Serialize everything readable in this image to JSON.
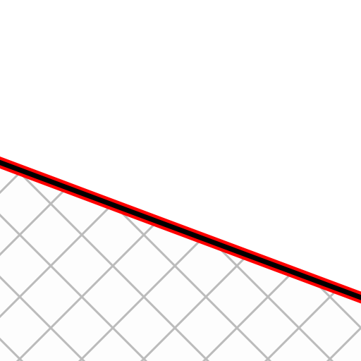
{
  "map": {
    "background_color": "#ffffff",
    "area": {
      "kind": "hatched-area",
      "fill_color": "#fdfdfd",
      "hatch_color": "#bbbbbb",
      "hatch_pattern": "diagonal-crosshatch"
    },
    "boundary": {
      "kind": "boundary-line",
      "core_color": "#000000",
      "casing_color": "#ff0000"
    }
  }
}
